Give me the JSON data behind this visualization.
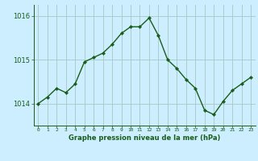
{
  "x": [
    0,
    1,
    2,
    3,
    4,
    5,
    6,
    7,
    8,
    9,
    10,
    11,
    12,
    13,
    14,
    15,
    16,
    17,
    18,
    19,
    20,
    21,
    22,
    23
  ],
  "y": [
    1014.0,
    1014.15,
    1014.35,
    1014.25,
    1014.45,
    1014.95,
    1015.05,
    1015.15,
    1015.35,
    1015.6,
    1015.75,
    1015.75,
    1015.95,
    1015.55,
    1015.0,
    1014.8,
    1014.55,
    1014.35,
    1013.85,
    1013.75,
    1014.05,
    1014.3,
    1014.45,
    1014.6
  ],
  "line_color": "#1a5c1a",
  "marker_style": "D",
  "marker_size": 2.2,
  "bg_color": "#cceeff",
  "grid_color": "#aacccc",
  "xlabel": "Graphe pression niveau de la mer (hPa)",
  "xlabel_color": "#1a5c1a",
  "tick_color": "#1a5c1a",
  "ylim": [
    1013.5,
    1016.25
  ],
  "yticks": [
    1014,
    1015,
    1016
  ],
  "xlim": [
    -0.5,
    23.5
  ],
  "xticks": [
    0,
    1,
    2,
    3,
    4,
    5,
    6,
    7,
    8,
    9,
    10,
    11,
    12,
    13,
    14,
    15,
    16,
    17,
    18,
    19,
    20,
    21,
    22,
    23
  ]
}
